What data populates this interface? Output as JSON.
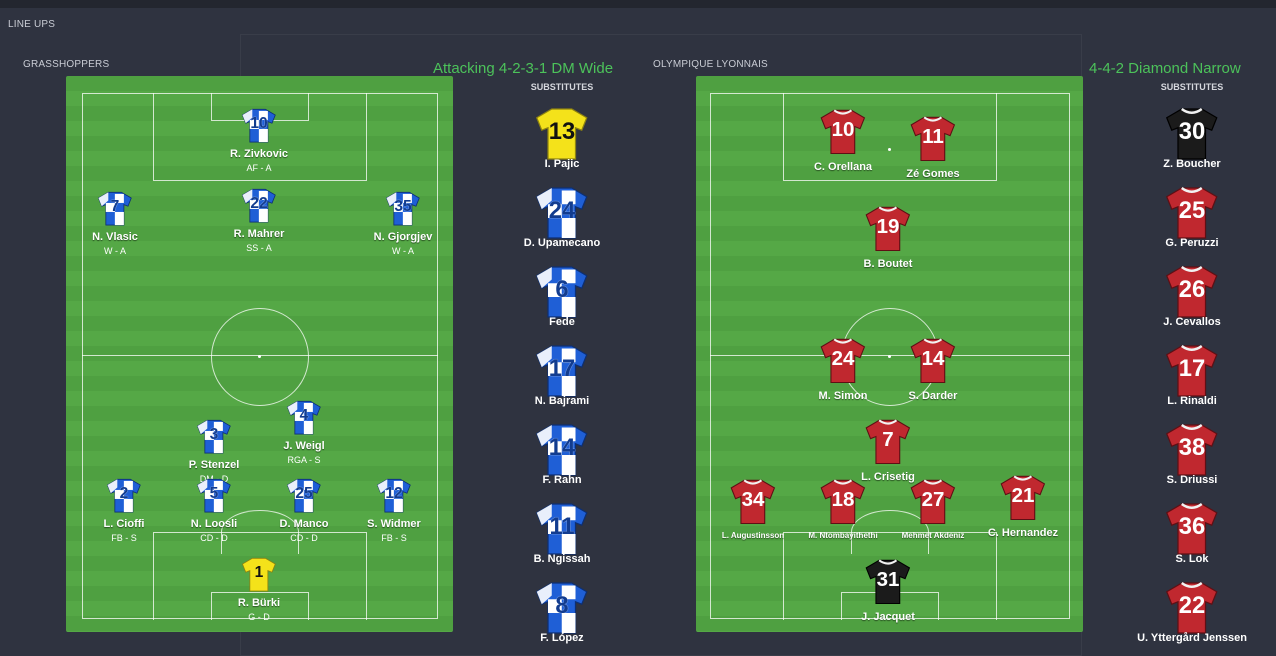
{
  "header": {
    "title": "LINE UPS"
  },
  "home": {
    "team": "GRASSHOPPERS",
    "formation": "Attacking 4-2-3-1 DM Wide",
    "subs_title": "SUBSTITUTES",
    "players": [
      {
        "number": "10",
        "name": "R. Zivkovic",
        "role": "AF",
        "duty": "A"
      },
      {
        "number": "7",
        "name": "N. Vlasic",
        "role": "W",
        "duty": "A"
      },
      {
        "number": "22",
        "name": "R. Mahrer",
        "role": "SS",
        "duty": "A"
      },
      {
        "number": "35",
        "name": "N. Gjorgjev",
        "role": "W",
        "duty": "A"
      },
      {
        "number": "4",
        "name": "J. Weigl",
        "role": "RGA",
        "duty": "S"
      },
      {
        "number": "3",
        "name": "P. Stenzel",
        "role": "DM",
        "duty": "D"
      },
      {
        "number": "2",
        "name": "L. Cioffi",
        "role": "FB",
        "duty": "S"
      },
      {
        "number": "5",
        "name": "N. Loosli",
        "role": "CD",
        "duty": "D"
      },
      {
        "number": "25",
        "name": "D. Manco",
        "role": "CD",
        "duty": "D"
      },
      {
        "number": "12",
        "name": "S. Widmer",
        "role": "FB",
        "duty": "S"
      },
      {
        "number": "1",
        "name": "R. Bürki",
        "role": "G",
        "duty": "D"
      }
    ],
    "subs": [
      {
        "number": "13",
        "name": "I. Pajic"
      },
      {
        "number": "24",
        "name": "D. Upamecano"
      },
      {
        "number": "6",
        "name": "Fede"
      },
      {
        "number": "17",
        "name": "N. Bajrami"
      },
      {
        "number": "14",
        "name": "F. Rahn"
      },
      {
        "number": "11",
        "name": "B. Ngissah"
      },
      {
        "number": "8",
        "name": "F. López"
      }
    ]
  },
  "away": {
    "team": "OLYMPIQUE LYONNAIS",
    "formation": "4-4-2 Diamond Narrow",
    "subs_title": "SUBSTITUTES",
    "players": [
      {
        "number": "10",
        "name": "C. Orellana"
      },
      {
        "number": "11",
        "name": "Zé Gomes"
      },
      {
        "number": "19",
        "name": "B. Boutet"
      },
      {
        "number": "24",
        "name": "M. Simon"
      },
      {
        "number": "14",
        "name": "S. Darder"
      },
      {
        "number": "7",
        "name": "L. Crisetig"
      },
      {
        "number": "34",
        "name": "L. Augustinsson"
      },
      {
        "number": "18",
        "name": "M. Ntombayithethi"
      },
      {
        "number": "27",
        "name": "Mehmet Akdeniz"
      },
      {
        "number": "21",
        "name": "C. Hernandez"
      },
      {
        "number": "31",
        "name": "J. Jacquet"
      }
    ],
    "subs": [
      {
        "number": "30",
        "name": "Z. Boucher"
      },
      {
        "number": "25",
        "name": "G. Peruzzi"
      },
      {
        "number": "26",
        "name": "J. Cevallos"
      },
      {
        "number": "17",
        "name": "L. Rinaldi"
      },
      {
        "number": "38",
        "name": "S. Driussi"
      },
      {
        "number": "36",
        "name": "S. Lok"
      },
      {
        "number": "22",
        "name": "U. Yttergård Jenssen"
      }
    ]
  },
  "colors": {
    "pitch": "#4fa041",
    "formation_text": "#4cc25a",
    "home_shirt": "#1f5fd6",
    "home_gk_shirt": "#f4e21a",
    "away_shirt": "#c0282f",
    "away_gk_shirt": "#1b1b1b"
  }
}
